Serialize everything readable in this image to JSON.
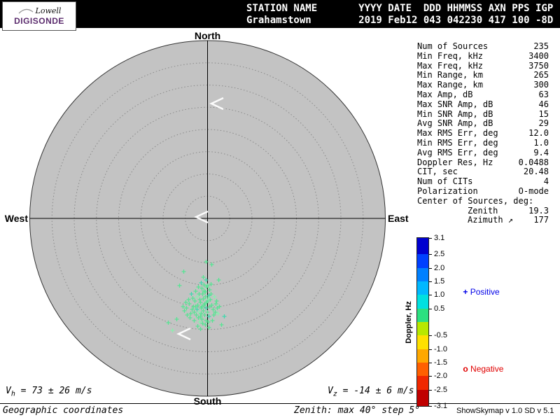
{
  "header": {
    "line1": "STATION NAME       YYYY DATE  DDD HHMMSS AXN PPS IGP",
    "line2": "Grahamstown        2019 Feb12 043 042230 417 100 -8D"
  },
  "logo": {
    "name": "Lowell",
    "product": "DIGISONDE",
    "brand_color": "#5C2D6E"
  },
  "compass": {
    "north": "North",
    "south": "South",
    "east": "East",
    "west": "West"
  },
  "stats": {
    "rows": [
      {
        "label": "Num of Sources",
        "value": "235"
      },
      {
        "label": "Min Freq, kHz",
        "value": "3400"
      },
      {
        "label": "Max Freq, kHz",
        "value": "3750"
      },
      {
        "label": "Min Range, km",
        "value": "265"
      },
      {
        "label": "Max Range, km",
        "value": "300"
      },
      {
        "label": "Max Amp, dB",
        "value": "63"
      },
      {
        "label": "Max SNR Amp, dB",
        "value": "46"
      },
      {
        "label": "Min SNR Amp, dB",
        "value": "15"
      },
      {
        "label": "Avg SNR Amp, dB",
        "value": "29"
      },
      {
        "label": "Max RMS Err, deg",
        "value": "12.0"
      },
      {
        "label": "Min RMS Err, deg",
        "value": "1.0"
      },
      {
        "label": "Avg RMS Err, deg",
        "value": "9.4"
      },
      {
        "label": "Doppler Res, Hz",
        "value": "0.0488"
      },
      {
        "label": "CIT, sec",
        "value": "20.48"
      },
      {
        "label": "Num of CITs",
        "value": "4"
      },
      {
        "label": "Polarization",
        "value": "O-mode"
      },
      {
        "label": "Center of Sources, deg:",
        "value": ""
      },
      {
        "label": "Zenith",
        "value": "19.3",
        "indent": true
      },
      {
        "label": "Azimuth ↗",
        "value": "177",
        "indent": true
      }
    ]
  },
  "colorbar": {
    "title": "Doppler, Hz",
    "min": -3.1,
    "max": 3.1,
    "segments": [
      {
        "from": 3.1,
        "to": 2.5,
        "color": "#0000D0"
      },
      {
        "from": 2.5,
        "to": 2.0,
        "color": "#0040FF"
      },
      {
        "from": 2.0,
        "to": 1.5,
        "color": "#0080FF"
      },
      {
        "from": 1.5,
        "to": 1.0,
        "color": "#00B8FF"
      },
      {
        "from": 1.0,
        "to": 0.5,
        "color": "#00E0E0"
      },
      {
        "from": 0.5,
        "to": 0.0,
        "color": "#2CE080"
      },
      {
        "from": 0.0,
        "to": -0.5,
        "color": "#B8E800"
      },
      {
        "from": -0.5,
        "to": -1.0,
        "color": "#FFE000"
      },
      {
        "from": -1.0,
        "to": -1.5,
        "color": "#FFA800"
      },
      {
        "from": -1.5,
        "to": -2.0,
        "color": "#FF6000"
      },
      {
        "from": -2.0,
        "to": -2.5,
        "color": "#F02800"
      },
      {
        "from": -2.5,
        "to": -3.1,
        "color": "#C00000"
      }
    ],
    "ticks": [
      {
        "label": "3.1",
        "value": 3.1
      },
      {
        "label": "2.5",
        "value": 2.5
      },
      {
        "label": "2.0",
        "value": 2.0
      },
      {
        "label": "1.5",
        "value": 1.5
      },
      {
        "label": "1.0",
        "value": 1.0
      },
      {
        "label": "0.5",
        "value": 0.5
      },
      {
        "label": "-0.5",
        "value": -0.5
      },
      {
        "label": "-1.0",
        "value": -1.0
      },
      {
        "label": "-1.5",
        "value": -1.5
      },
      {
        "label": "-2.0",
        "value": -2.0
      },
      {
        "label": "-2.5",
        "value": -2.5
      },
      {
        "label": "-3.1",
        "value": -3.1
      }
    ]
  },
  "legend": {
    "positive": {
      "marker": "+",
      "label": " Positive",
      "color": "#0000E8"
    },
    "negative": {
      "marker": "o",
      "label": " Negative",
      "color": "#E00000"
    }
  },
  "skymap": {
    "type": "scatter-polar",
    "zenith_max_deg": 40,
    "zenith_step_deg": 5,
    "palette": [
      "#57E493",
      "#3FD9AD",
      "#8BEFAF"
    ],
    "points": [
      [
        -8,
        100,
        0
      ],
      [
        -3,
        105,
        0
      ],
      [
        2,
        110,
        1
      ],
      [
        -12,
        108,
        0
      ],
      [
        -6,
        115,
        0
      ],
      [
        0,
        118,
        0
      ],
      [
        -15,
        112,
        2
      ],
      [
        -10,
        120,
        0
      ],
      [
        -4,
        122,
        0
      ],
      [
        4,
        116,
        0
      ],
      [
        -18,
        118,
        0
      ],
      [
        -8,
        126,
        0
      ],
      [
        -2,
        128,
        1
      ],
      [
        6,
        124,
        0
      ],
      [
        -14,
        124,
        0
      ],
      [
        -20,
        126,
        0
      ],
      [
        -6,
        132,
        0
      ],
      [
        0,
        134,
        0
      ],
      [
        -12,
        134,
        2
      ],
      [
        8,
        130,
        0
      ],
      [
        -4,
        138,
        0
      ],
      [
        -10,
        140,
        0
      ],
      [
        -16,
        138,
        0
      ],
      [
        2,
        140,
        1
      ],
      [
        -8,
        144,
        0
      ],
      [
        -2,
        146,
        0
      ],
      [
        -22,
        130,
        0
      ],
      [
        -26,
        122,
        0
      ],
      [
        -24,
        136,
        0
      ],
      [
        12,
        122,
        0
      ],
      [
        10,
        112,
        2
      ],
      [
        14,
        128,
        0
      ],
      [
        -30,
        128,
        0
      ],
      [
        -5,
        95,
        0
      ],
      [
        -1,
        98,
        0
      ],
      [
        3,
        102,
        0
      ],
      [
        -9,
        92,
        1
      ],
      [
        -13,
        98,
        0
      ],
      [
        -17,
        104,
        0
      ],
      [
        5,
        94,
        0
      ],
      [
        -7,
        150,
        0
      ],
      [
        -3,
        152,
        0
      ],
      [
        -11,
        148,
        2
      ],
      [
        1,
        148,
        0
      ],
      [
        -19,
        146,
        0
      ],
      [
        7,
        146,
        0
      ],
      [
        -25,
        142,
        0
      ],
      [
        9,
        138,
        0
      ],
      [
        -21,
        114,
        0
      ],
      [
        -23,
        108,
        1
      ],
      [
        -27,
        116,
        0
      ],
      [
        -31,
        120,
        0
      ],
      [
        11,
        134,
        0
      ],
      [
        13,
        118,
        0
      ],
      [
        -33,
        132,
        0
      ],
      [
        15,
        136,
        2
      ],
      [
        -9,
        128,
        0
      ],
      [
        -5,
        124,
        0
      ],
      [
        -1,
        120,
        0
      ],
      [
        3,
        126,
        0
      ],
      [
        -11,
        116,
        0
      ],
      [
        -15,
        130,
        1
      ],
      [
        -19,
        134,
        0
      ],
      [
        -13,
        142,
        0
      ],
      [
        -17,
        126,
        0
      ],
      [
        -7,
        108,
        0
      ],
      [
        -3,
        112,
        0
      ],
      [
        1,
        114,
        2
      ],
      [
        5,
        108,
        0
      ],
      [
        -5,
        104,
        0
      ],
      [
        -9,
        136,
        0
      ],
      [
        -29,
        138,
        0
      ],
      [
        -35,
        126,
        0
      ],
      [
        17,
        126,
        0
      ],
      [
        -2,
        88,
        1
      ],
      [
        -6,
        84,
        0
      ],
      [
        2,
        156,
        0
      ],
      [
        -10,
        158,
        0
      ],
      [
        -14,
        154,
        0
      ],
      [
        0,
        96,
        0
      ],
      [
        -56,
        149,
        0
      ],
      [
        -44,
        144,
        0
      ],
      [
        24,
        140,
        1
      ],
      [
        6,
        66,
        0
      ],
      [
        -34,
        76,
        0
      ],
      [
        -50,
        160,
        2
      ],
      [
        20,
        152,
        0
      ],
      [
        -40,
        96,
        0
      ],
      [
        -2,
        62,
        0
      ],
      [
        16,
        88,
        0
      ]
    ],
    "chevrons": [
      [
        302,
        148
      ],
      [
        280,
        310
      ],
      [
        255,
        477
      ]
    ]
  },
  "footer": {
    "vh_base": "V",
    "vh_sub": "h",
    "vh_rest": " = 73 ± 26 m/s",
    "vz_base": "V",
    "vz_sub": "z",
    "vz_rest": " = -14 ± 6 m/s",
    "coordinates": "Geographic coordinates",
    "zenith_note": "Zenith: max 40°  step 5°",
    "version": "ShowSkymap v 1.0  SD v 5.1"
  }
}
